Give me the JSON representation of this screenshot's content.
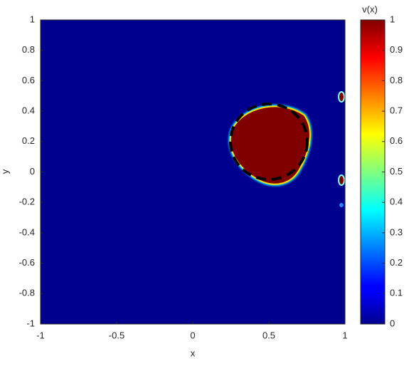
{
  "chart_data": {
    "type": "heatmap",
    "xlabel": "x",
    "ylabel": "y",
    "xlim": [
      -1,
      1
    ],
    "ylim": [
      -1,
      1
    ],
    "xticks": [
      -1,
      -0.5,
      0,
      0.5,
      1
    ],
    "yticks": [
      -1,
      -0.8,
      -0.6,
      -0.4,
      -0.2,
      0,
      0.2,
      0.4,
      0.6,
      0.8,
      1
    ],
    "colormap": "jet",
    "colorbar_label": "v(x)",
    "clim": [
      0,
      1
    ],
    "cticks": [
      0,
      0.1,
      0.2,
      0.3,
      0.4,
      0.5,
      0.6,
      0.7,
      0.8,
      0.9,
      1
    ]
  }
}
